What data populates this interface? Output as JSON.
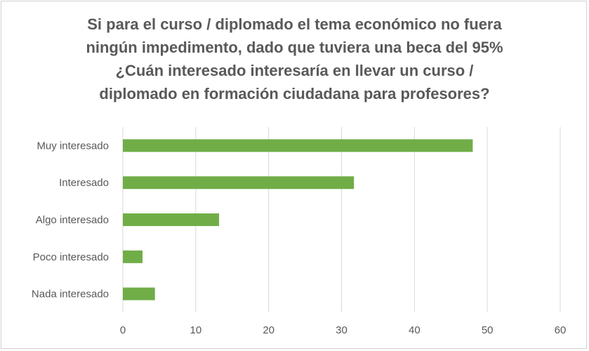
{
  "chart_data": {
    "type": "bar",
    "orientation": "horizontal",
    "title_lines": [
      "Si para el curso / diplomado el tema económico no fuera",
      "ningún impedimento, dado que tuviera una beca del 95%",
      "¿Cuán interesado interesaría en llevar un curso /",
      "diplomado en formación ciudadana para profesores?"
    ],
    "categories": [
      "Muy interesado",
      "Interesado",
      "Algo interesado",
      "Poco interesado",
      "Nada interesado"
    ],
    "values": [
      48,
      31.7,
      13.2,
      2.7,
      4.4
    ],
    "xlim": [
      0,
      60
    ],
    "xticks": [
      "0",
      "10",
      "20",
      "30",
      "40",
      "50",
      "60"
    ],
    "grid": true,
    "legend": false,
    "colors": {
      "bar": "#70ad47",
      "grid": "#d9d9d9",
      "text": "#595959"
    }
  }
}
